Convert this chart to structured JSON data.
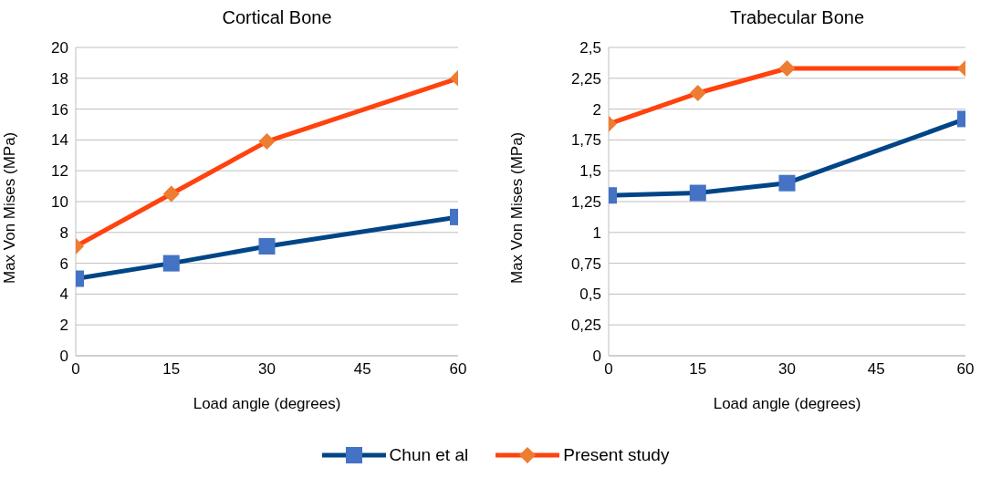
{
  "chart_data": [
    {
      "type": "line",
      "title": "Cortical Bone",
      "xlabel": "Load angle (degrees)",
      "ylabel": "Max Von Mises (MPa)",
      "x": [
        0,
        15,
        30,
        60
      ],
      "xlim": [
        0,
        60
      ],
      "xticks": [
        0,
        15,
        30,
        45,
        60
      ],
      "ylim": [
        0,
        20
      ],
      "yticks": [
        0,
        2,
        4,
        6,
        8,
        10,
        12,
        14,
        16,
        18,
        20
      ],
      "grid": "y",
      "legend": "bottom",
      "series": [
        {
          "name": "Chun et al",
          "color": "#004586",
          "marker": "square",
          "colors": [
            "#4472c4",
            "#4472c4",
            "#4472c4",
            "#4472c4"
          ],
          "values": [
            5,
            6,
            7.1,
            9
          ]
        },
        {
          "name": "Present study",
          "color": "#ff420e",
          "marker": "diamond",
          "colors": [
            "#ed7d31",
            "#ed7d31",
            "#ed7d31",
            "#ed7d31"
          ],
          "values": [
            7.1,
            10.5,
            13.9,
            18
          ]
        }
      ]
    },
    {
      "type": "line",
      "title": "Trabecular Bone",
      "xlabel": "Load angle (degrees)",
      "ylabel": "Max Von Mises (MPa)",
      "x": [
        0,
        15,
        30,
        60
      ],
      "xlim": [
        0,
        60
      ],
      "xticks": [
        0,
        15,
        30,
        45,
        60
      ],
      "ylim": [
        0,
        2.5
      ],
      "yticks": [
        0,
        {
          "value": 0.25,
          "label": "0,25"
        },
        {
          "value": 0.5,
          "label": "0,5"
        },
        {
          "value": 0.75,
          "label": "0,75"
        },
        1,
        {
          "value": 1.25,
          "label": "1,25"
        },
        {
          "value": 1.5,
          "label": "1,5"
        },
        {
          "value": 1.75,
          "label": "1,75"
        },
        2,
        {
          "value": 2.25,
          "label": "2,25"
        },
        {
          "value": 2.5,
          "label": "2,5"
        }
      ],
      "grid": "y",
      "series": [
        {
          "color": "#004586",
          "marker": "square",
          "colors": [
            "#4472c4",
            "#4472c4",
            "#4472c4",
            "#4472c4"
          ],
          "values": [
            1.3,
            1.32,
            1.4,
            1.92
          ]
        },
        {
          "color": "#ff420e",
          "marker": "diamond",
          "colors": [
            "#ed7d31",
            "#ed7d31",
            "#ed7d31",
            "#ed7d31"
          ],
          "values": [
            1.88,
            2.13,
            2.33,
            2.33
          ]
        }
      ]
    }
  ]
}
